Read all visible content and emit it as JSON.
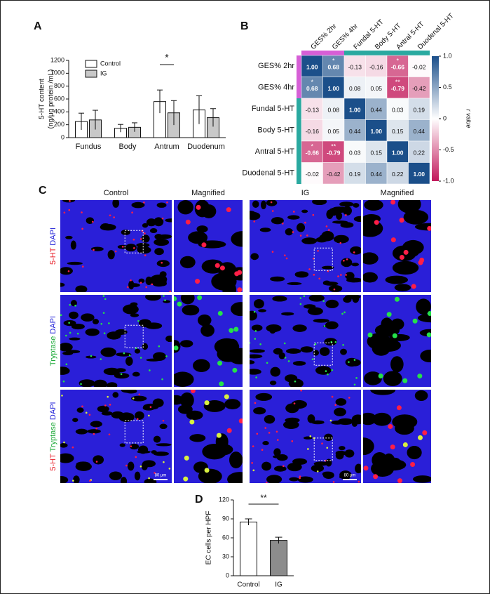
{
  "panel_labels": [
    "A",
    "B",
    "C",
    "D"
  ],
  "chart_data": [
    {
      "type": "grouped_bar",
      "ylabel": [
        "5-HT content",
        "(ng/μg protein /mL)"
      ],
      "categories": [
        "Fundus",
        "Body",
        "Antrum",
        "Duodenum"
      ],
      "series": [
        {
          "name": "Control",
          "color": "#ffffff",
          "values": [
            250,
            145,
            560,
            430
          ],
          "errors": [
            130,
            60,
            180,
            220
          ]
        },
        {
          "name": "IG",
          "color": "#c8c8c8",
          "values": [
            275,
            160,
            385,
            310
          ],
          "errors": [
            150,
            70,
            190,
            140
          ]
        }
      ],
      "ylim": [
        0,
        1200
      ],
      "yticks": [
        0,
        200,
        400,
        600,
        800,
        1000,
        1200
      ],
      "significance": [
        {
          "text": "*",
          "category": "Antrum"
        }
      ]
    },
    {
      "type": "heatmap",
      "categories": [
        "GES% 2hr",
        "GES% 4hr",
        "Fundal 5-HT",
        "Body 5-HT",
        "Antral 5-HT",
        "Duodenal 5-HT"
      ],
      "values": [
        [
          1,
          0.68,
          -0.13,
          -0.16,
          -0.66,
          -0.02
        ],
        [
          0.68,
          1,
          0.08,
          0.05,
          -0.79,
          -0.42
        ],
        [
          -0.13,
          0.08,
          1,
          0.44,
          0.03,
          0.19
        ],
        [
          -0.16,
          0.05,
          0.44,
          1,
          0.15,
          0.44
        ],
        [
          -0.66,
          -0.79,
          0.03,
          0.15,
          1,
          0.22
        ],
        [
          -0.02,
          -0.42,
          0.19,
          0.44,
          0.22,
          1
        ]
      ],
      "value_labels": [
        [
          "1.00",
          "0.68",
          "-0.13",
          "-0.16",
          "-0.66",
          "-0.02"
        ],
        [
          "0.68",
          "1.00",
          "0.08",
          "0.05",
          "-0.79",
          "-0.42"
        ],
        [
          "-0.13",
          "0.08",
          "1.00",
          "0.44",
          "0.03",
          "0.19"
        ],
        [
          "-0.16",
          "0.05",
          "0.44",
          "1.00",
          "0.15",
          "0.44"
        ],
        [
          "-0.66",
          "-0.79",
          "0.03",
          "0.15",
          "1.00",
          "0.22"
        ],
        [
          "-0.02",
          "-0.42",
          "0.19",
          "0.44",
          "0.22",
          "1.00"
        ]
      ],
      "stars": [
        [
          null,
          "*",
          null,
          null,
          "*",
          null
        ],
        [
          "*",
          null,
          null,
          null,
          "**",
          null
        ],
        [
          null,
          null,
          null,
          null,
          null,
          null
        ],
        [
          null,
          null,
          null,
          null,
          null,
          null
        ],
        [
          "*",
          "**",
          null,
          null,
          null,
          null
        ],
        [
          null,
          null,
          null,
          null,
          null,
          null
        ]
      ],
      "colorbar": {
        "lim": [
          -1,
          1
        ],
        "colors": [
          "#c2185b",
          "#ffffff",
          "#1b4f8a"
        ],
        "label": "r value",
        "ticks": [
          {
            "value": 1,
            "label": "1.0"
          },
          0.5,
          0,
          -0.5,
          {
            "value": -1,
            "label": "-1.0"
          }
        ]
      }
    },
    {
      "type": "bar",
      "ylabel": "EC cells per HPF",
      "categories": [
        "Control",
        "IG"
      ],
      "values": [
        85,
        56
      ],
      "errors": [
        5,
        5
      ],
      "colors": [
        "#ffffff",
        "#8c8c8c"
      ],
      "ylim": [
        0,
        120
      ],
      "yticks": [
        0,
        30,
        60,
        90,
        120
      ],
      "significance": "**"
    }
  ],
  "micrographs": {
    "column_titles": [
      "Control",
      "Magnified",
      "IG",
      "Magnified"
    ],
    "row_labels": [
      [
        {
          "text": "5-HT",
          "color": "#e8202a"
        },
        {
          "text": "DAPI",
          "color": "#2323d8"
        }
      ],
      [
        {
          "text": "Tryptase",
          "color": "#1faa3a"
        },
        {
          "text": "DAPI",
          "color": "#2323d8"
        }
      ],
      [
        {
          "text": "5-HT",
          "color": "#e8202a"
        },
        {
          "text": "Tryptase",
          "color": "#1faa3a"
        },
        {
          "text": "DAPI",
          "color": "#2323d8"
        }
      ]
    ],
    "scale_bar": "80 μm"
  }
}
